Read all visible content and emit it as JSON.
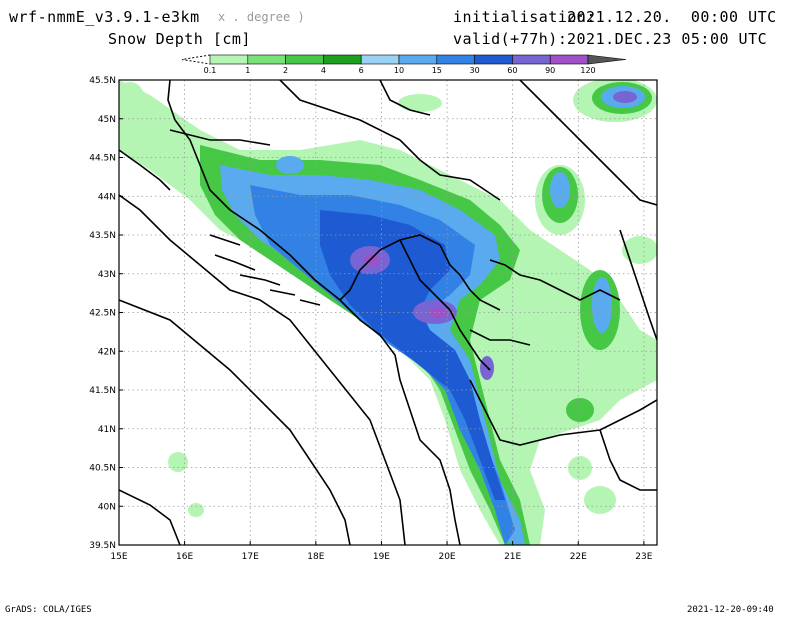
{
  "header": {
    "model": "wrf-nmmE_v3.9.1-e3km",
    "projection": "x . degree )",
    "variable": "Snow Depth [cm]",
    "init_label": "initialisation:",
    "init_value": "2021.12.20.  00:00 UTC",
    "valid_label": "valid(+77h):",
    "valid_value": "2021.DEC.23 05:00 UTC"
  },
  "colorbar": {
    "levels": [
      "0.1",
      "1",
      "2",
      "4",
      "6",
      "10",
      "15",
      "30",
      "60",
      "90",
      "120"
    ],
    "colors": [
      "#b4f5b4",
      "#78e178",
      "#46c846",
      "#1ea01e",
      "#9ad2f5",
      "#5aaaf0",
      "#3282e6",
      "#1e5ad2",
      "#7864d2",
      "#a050c8"
    ]
  },
  "map": {
    "lon_min": 15,
    "lon_max": 23.2,
    "lat_min": 39.5,
    "lat_max": 45.5,
    "x_ticks": [
      "15E",
      "16E",
      "17E",
      "18E",
      "19E",
      "20E",
      "21E",
      "22E",
      "23E"
    ],
    "y_ticks": [
      "45.5N",
      "45N",
      "44.5N",
      "44N",
      "43.5N",
      "43N",
      "42.5N",
      "42N",
      "41.5N",
      "41N",
      "40.5N",
      "40N",
      "39.5N"
    ]
  },
  "footer": {
    "left": "GrADS: COLA/IGES",
    "right": "2021-12-20-09:40"
  }
}
